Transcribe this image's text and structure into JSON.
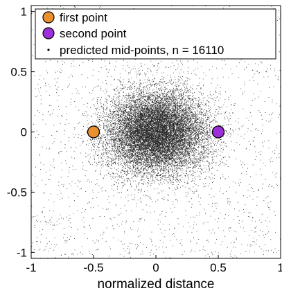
{
  "chart_data": {
    "type": "scatter",
    "title": "",
    "xlabel": "normalized distance",
    "ylabel": "",
    "xlim": [
      -1,
      1
    ],
    "ylim": [
      -1.05,
      1.05
    ],
    "grid": false,
    "legend_position": "top-left",
    "x_ticks": [
      {
        "value": -1,
        "label": "-1"
      },
      {
        "value": -0.5,
        "label": "-0.5"
      },
      {
        "value": 0,
        "label": "0"
      },
      {
        "value": 0.5,
        "label": "0.5"
      },
      {
        "value": 1,
        "label": "1"
      }
    ],
    "y_ticks": [
      {
        "value": 1,
        "label": "1"
      },
      {
        "value": 0.5,
        "label": "0.5"
      },
      {
        "value": 0,
        "label": "0"
      },
      {
        "value": -0.5,
        "label": "-0.5"
      },
      {
        "value": -1,
        "label": "-1"
      }
    ],
    "series": [
      {
        "name": "first point",
        "marker": "circle",
        "color": "#e8912e",
        "x": [
          -0.5
        ],
        "y": [
          0
        ]
      },
      {
        "name": "second point",
        "marker": "circle",
        "color": "#9b30d9",
        "x": [
          0.5
        ],
        "y": [
          0
        ]
      },
      {
        "name": "predicted mid-points, n = 16110",
        "marker": "dot",
        "color": "#000000",
        "n": 16110,
        "distribution": {
          "center": [
            0,
            0
          ],
          "std": [
            0.2,
            0.17
          ],
          "outer_fraction": 0.12
        }
      }
    ]
  }
}
